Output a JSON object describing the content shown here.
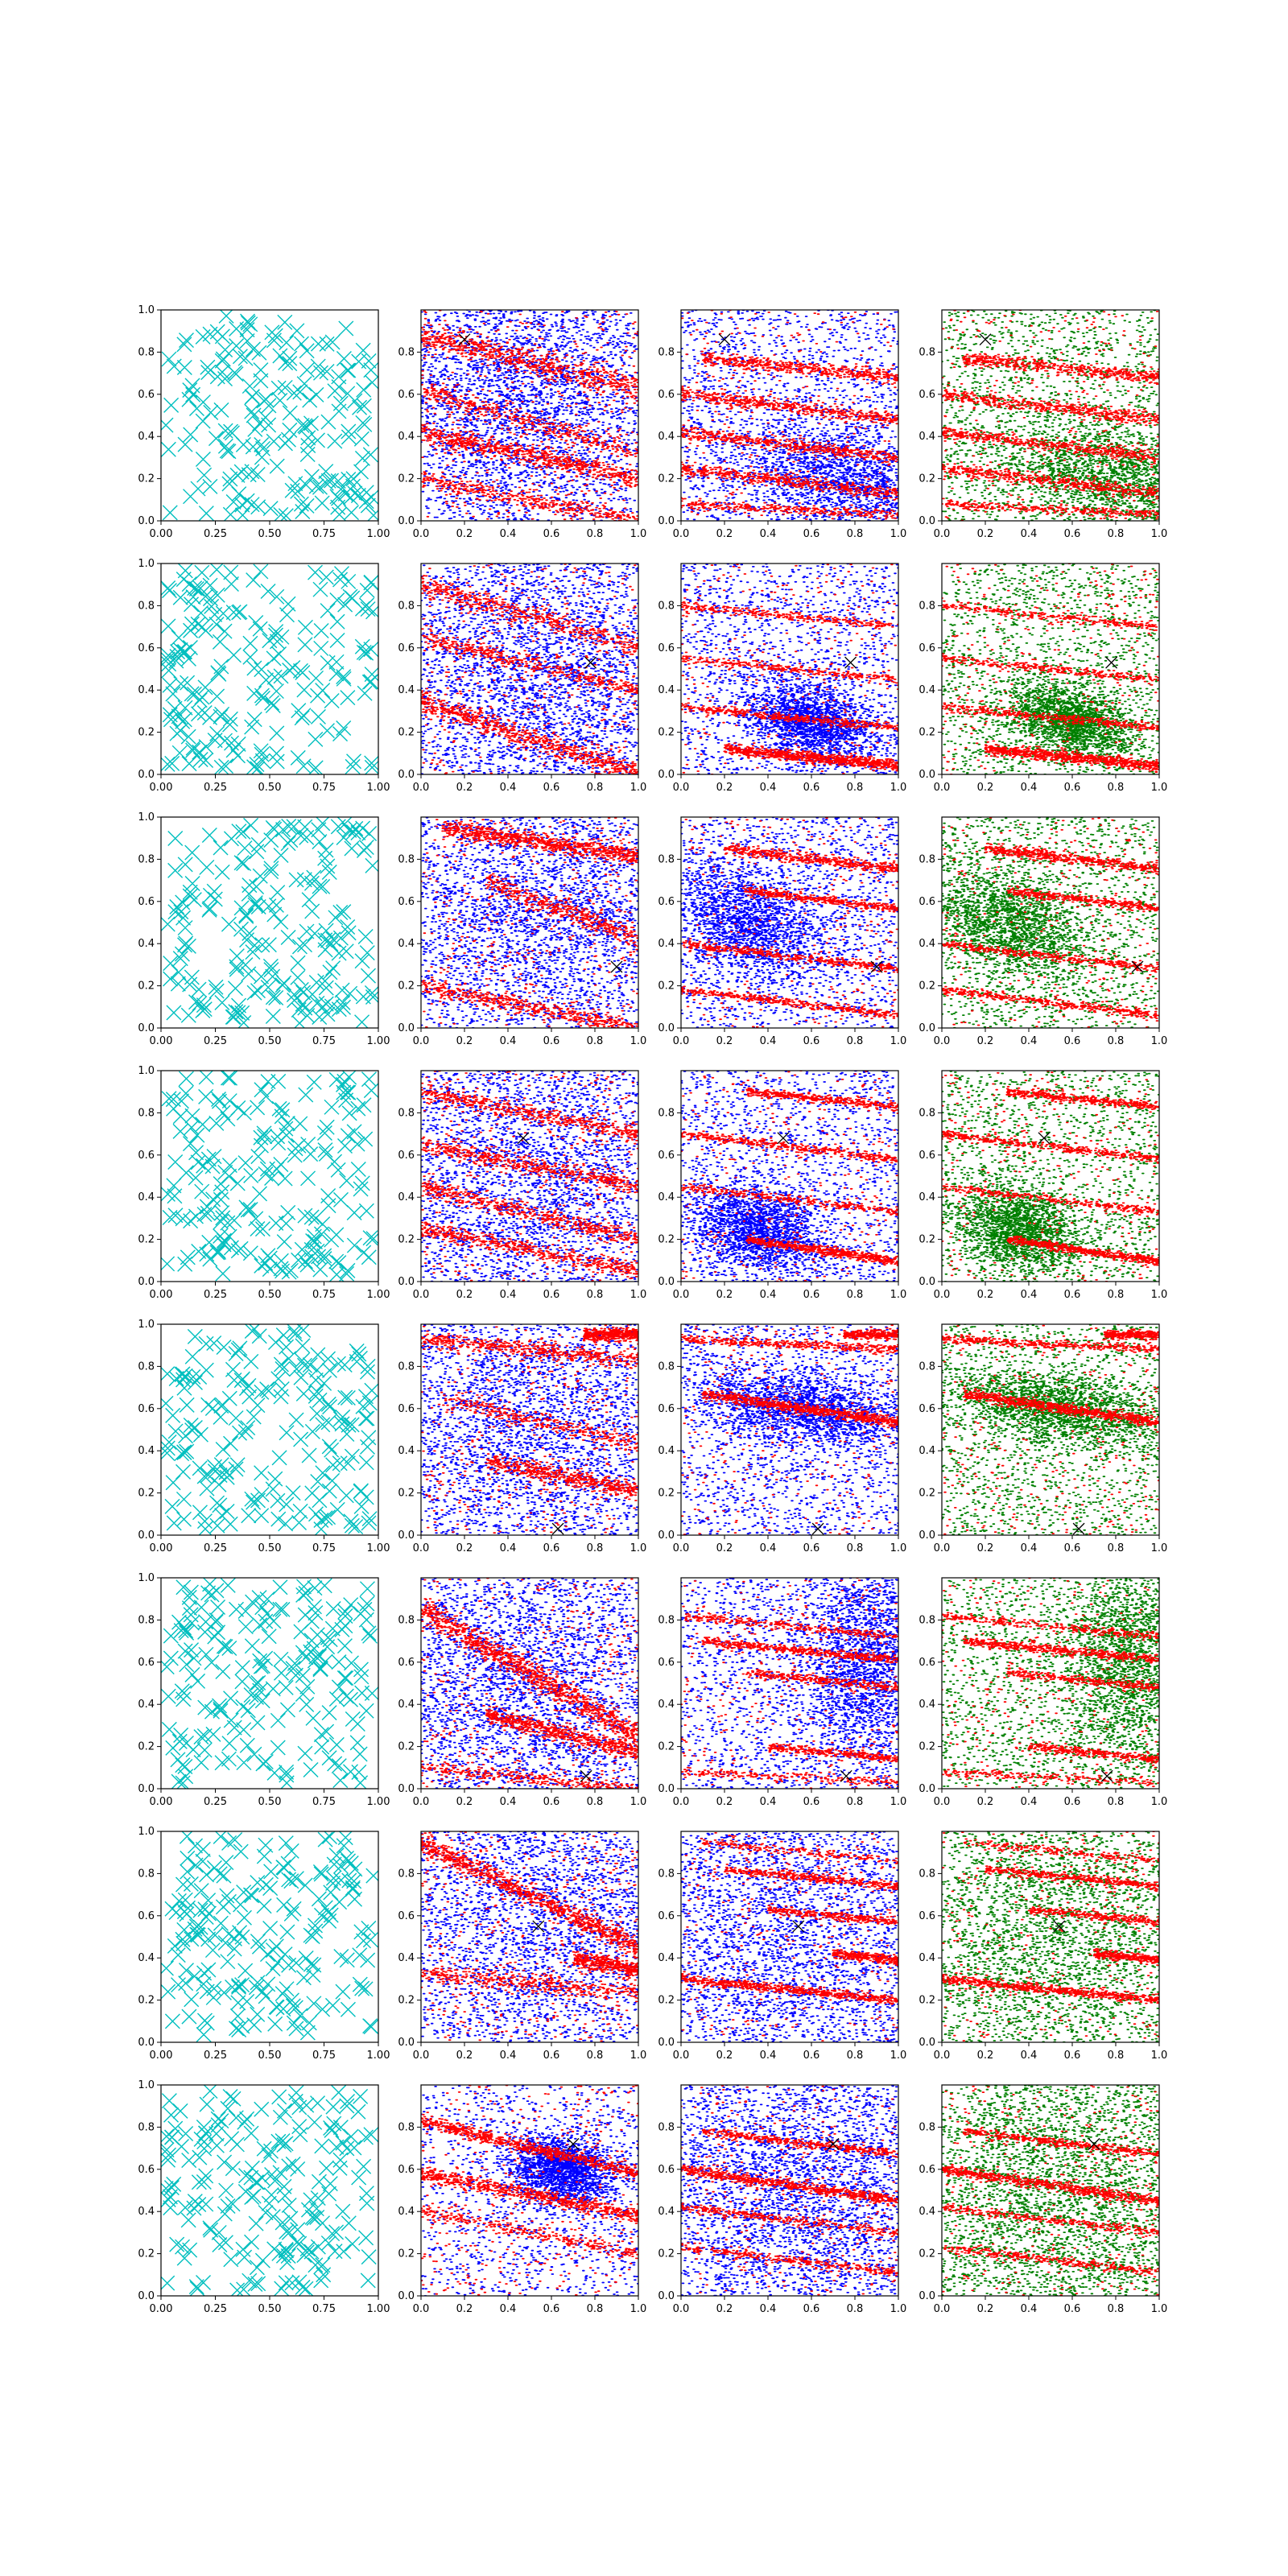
{
  "chart_data": {
    "type": "scatter",
    "layout": {
      "rows": 8,
      "cols": 4
    },
    "colors": {
      "uniform_marker": "#00bfbf",
      "red_points": "#ff0000",
      "blue_points": "#0000ff",
      "green_points": "#008000",
      "target_marker": "#000000"
    },
    "col0": {
      "marker": "x",
      "xlim": [
        0,
        1
      ],
      "ylim": [
        0,
        1
      ],
      "xticks": [
        "0.00",
        "0.25",
        "0.50",
        "0.75",
        "1.00"
      ],
      "yticks": [
        "0.0",
        "0.2",
        "0.4",
        "0.6",
        "0.8",
        "1.0"
      ],
      "n_points": 200
    },
    "cols123": {
      "xlim": [
        0,
        1
      ],
      "ylim": [
        0,
        1
      ],
      "xticks": [
        "0.0",
        "0.2",
        "0.4",
        "0.6",
        "0.8",
        "1.0"
      ],
      "yticks": [
        "0.0",
        "0.2",
        "0.4",
        "0.6",
        "0.8"
      ]
    },
    "rows": [
      {
        "target": [
          0.2,
          0.86
        ],
        "red_bands": [
          {
            "x0": 0.0,
            "y0": 0.88,
            "slope": -0.25,
            "w": 0.06,
            "n": 700
          },
          {
            "x0": 0.0,
            "y0": 0.42,
            "slope": -0.22,
            "w": 0.05,
            "n": 700
          },
          {
            "x0": 0.0,
            "y0": 0.62,
            "slope": -0.3,
            "w": 0.05,
            "n": 400
          },
          {
            "x0": 0.0,
            "y0": 0.2,
            "slope": -0.2,
            "w": 0.04,
            "n": 400
          }
        ],
        "blue_cluster": {
          "cx": 0.45,
          "cy": 0.55,
          "sx": 0.35,
          "sy": 0.3,
          "rot": -0.4,
          "n": 2500
        },
        "blue_cluster_c3": {
          "cx": 0.8,
          "cy": 0.2,
          "sx": 0.3,
          "sy": 0.12,
          "rot": -0.2,
          "n": 1800
        },
        "red_bands_c3": [
          {
            "x0": 0.1,
            "y0": 0.77,
            "slope": -0.1,
            "w": 0.03,
            "n": 500
          },
          {
            "x0": 0.0,
            "y0": 0.6,
            "slope": -0.12,
            "w": 0.03,
            "n": 500
          },
          {
            "x0": 0.0,
            "y0": 0.42,
            "slope": -0.12,
            "w": 0.03,
            "n": 500
          },
          {
            "x0": 0.0,
            "y0": 0.25,
            "slope": -0.12,
            "w": 0.03,
            "n": 500
          },
          {
            "x0": 0.0,
            "y0": 0.08,
            "slope": -0.05,
            "w": 0.02,
            "n": 300
          }
        ]
      },
      {
        "target": [
          0.78,
          0.53
        ],
        "red_bands": [
          {
            "x0": 0.0,
            "y0": 0.35,
            "slope": -0.35,
            "w": 0.05,
            "n": 700
          },
          {
            "x0": 0.0,
            "y0": 0.9,
            "slope": -0.3,
            "w": 0.05,
            "n": 500
          },
          {
            "x0": 0.0,
            "y0": 0.65,
            "slope": -0.25,
            "w": 0.04,
            "n": 400
          }
        ],
        "blue_cluster": {
          "cx": 0.55,
          "cy": 0.45,
          "sx": 0.35,
          "sy": 0.35,
          "rot": -0.3,
          "n": 2500
        },
        "blue_cluster_c3": {
          "cx": 0.6,
          "cy": 0.25,
          "sx": 0.15,
          "sy": 0.08,
          "rot": -0.3,
          "n": 1800
        },
        "red_bands_c3": [
          {
            "x0": 0.2,
            "y0": 0.12,
            "slope": -0.1,
            "w": 0.025,
            "n": 800
          },
          {
            "x0": 0.0,
            "y0": 0.32,
            "slope": -0.1,
            "w": 0.02,
            "n": 400
          },
          {
            "x0": 0.0,
            "y0": 0.55,
            "slope": -0.1,
            "w": 0.02,
            "n": 300
          },
          {
            "x0": 0.0,
            "y0": 0.8,
            "slope": -0.1,
            "w": 0.02,
            "n": 300
          }
        ]
      },
      {
        "target": [
          0.9,
          0.29
        ],
        "red_bands": [
          {
            "x0": 0.1,
            "y0": 0.95,
            "slope": -0.15,
            "w": 0.04,
            "n": 800
          },
          {
            "x0": 0.0,
            "y0": 0.2,
            "slope": -0.2,
            "w": 0.04,
            "n": 500
          },
          {
            "x0": 0.3,
            "y0": 0.7,
            "slope": -0.4,
            "w": 0.05,
            "n": 400
          }
        ],
        "blue_cluster": {
          "cx": 0.55,
          "cy": 0.55,
          "sx": 0.4,
          "sy": 0.35,
          "rot": -0.3,
          "n": 2500
        },
        "blue_cluster_c3": {
          "cx": 0.3,
          "cy": 0.5,
          "sx": 0.2,
          "sy": 0.12,
          "rot": -0.4,
          "n": 1800
        },
        "red_bands_c3": [
          {
            "x0": 0.2,
            "y0": 0.85,
            "slope": -0.12,
            "w": 0.025,
            "n": 500
          },
          {
            "x0": 0.3,
            "y0": 0.65,
            "slope": -0.12,
            "w": 0.02,
            "n": 400
          },
          {
            "x0": 0.0,
            "y0": 0.4,
            "slope": -0.12,
            "w": 0.02,
            "n": 400
          },
          {
            "x0": 0.0,
            "y0": 0.18,
            "slope": -0.12,
            "w": 0.02,
            "n": 400
          }
        ]
      },
      {
        "target": [
          0.47,
          0.68
        ],
        "red_bands": [
          {
            "x0": 0.0,
            "y0": 0.9,
            "slope": -0.2,
            "w": 0.04,
            "n": 500
          },
          {
            "x0": 0.0,
            "y0": 0.65,
            "slope": -0.2,
            "w": 0.04,
            "n": 500
          },
          {
            "x0": 0.0,
            "y0": 0.45,
            "slope": -0.25,
            "w": 0.04,
            "n": 500
          },
          {
            "x0": 0.0,
            "y0": 0.25,
            "slope": -0.2,
            "w": 0.04,
            "n": 500
          }
        ],
        "blue_cluster": {
          "cx": 0.5,
          "cy": 0.5,
          "sx": 0.4,
          "sy": 0.4,
          "rot": -0.3,
          "n": 2500
        },
        "blue_cluster_c3": {
          "cx": 0.35,
          "cy": 0.25,
          "sx": 0.15,
          "sy": 0.1,
          "rot": -0.3,
          "n": 1800
        },
        "red_bands_c3": [
          {
            "x0": 0.3,
            "y0": 0.2,
            "slope": -0.15,
            "w": 0.02,
            "n": 600
          },
          {
            "x0": 0.0,
            "y0": 0.7,
            "slope": -0.12,
            "w": 0.02,
            "n": 400
          },
          {
            "x0": 0.3,
            "y0": 0.9,
            "slope": -0.1,
            "w": 0.02,
            "n": 400
          },
          {
            "x0": 0.0,
            "y0": 0.45,
            "slope": -0.12,
            "w": 0.02,
            "n": 300
          }
        ]
      },
      {
        "target": [
          0.63,
          0.03
        ],
        "red_bands": [
          {
            "x0": 0.0,
            "y0": 0.93,
            "slope": -0.1,
            "w": 0.04,
            "n": 500
          },
          {
            "x0": 0.75,
            "y0": 0.95,
            "slope": 0.0,
            "w": 0.03,
            "n": 400
          },
          {
            "x0": 0.3,
            "y0": 0.35,
            "slope": -0.2,
            "w": 0.04,
            "n": 500
          },
          {
            "x0": 0.1,
            "y0": 0.65,
            "slope": -0.25,
            "w": 0.04,
            "n": 300
          }
        ],
        "blue_cluster": {
          "cx": 0.5,
          "cy": 0.55,
          "sx": 0.4,
          "sy": 0.35,
          "rot": -0.3,
          "n": 2300
        },
        "blue_cluster_c3": {
          "cx": 0.55,
          "cy": 0.6,
          "sx": 0.25,
          "sy": 0.08,
          "rot": -0.15,
          "n": 1800
        },
        "red_bands_c3": [
          {
            "x0": 0.1,
            "y0": 0.67,
            "slope": -0.15,
            "w": 0.025,
            "n": 800
          },
          {
            "x0": 0.0,
            "y0": 0.93,
            "slope": -0.05,
            "w": 0.02,
            "n": 400
          },
          {
            "x0": 0.75,
            "y0": 0.95,
            "slope": 0.0,
            "w": 0.02,
            "n": 300
          }
        ]
      },
      {
        "target": [
          0.76,
          0.06
        ],
        "red_bands": [
          {
            "x0": 0.0,
            "y0": 0.85,
            "slope": -0.6,
            "w": 0.06,
            "n": 1000
          },
          {
            "x0": 0.3,
            "y0": 0.35,
            "slope": -0.25,
            "w": 0.04,
            "n": 600
          },
          {
            "x0": 0.0,
            "y0": 0.1,
            "slope": -0.1,
            "w": 0.03,
            "n": 300
          }
        ],
        "blue_cluster": {
          "cx": 0.45,
          "cy": 0.5,
          "sx": 0.35,
          "sy": 0.35,
          "rot": -0.4,
          "n": 2300
        },
        "blue_cluster_c3": {
          "cx": 0.85,
          "cy": 0.6,
          "sx": 0.15,
          "sy": 0.25,
          "rot": 0.0,
          "n": 1800
        },
        "red_bands_c3": [
          {
            "x0": 0.1,
            "y0": 0.7,
            "slope": -0.1,
            "w": 0.02,
            "n": 500
          },
          {
            "x0": 0.0,
            "y0": 0.82,
            "slope": -0.1,
            "w": 0.02,
            "n": 300
          },
          {
            "x0": 0.3,
            "y0": 0.55,
            "slope": -0.1,
            "w": 0.02,
            "n": 300
          },
          {
            "x0": 0.4,
            "y0": 0.2,
            "slope": -0.1,
            "w": 0.02,
            "n": 300
          },
          {
            "x0": 0.0,
            "y0": 0.08,
            "slope": -0.05,
            "w": 0.02,
            "n": 200
          }
        ]
      },
      {
        "target": [
          0.54,
          0.55
        ],
        "red_bands": [
          {
            "x0": 0.0,
            "y0": 0.95,
            "slope": -0.5,
            "w": 0.05,
            "n": 900
          },
          {
            "x0": 0.0,
            "y0": 0.33,
            "slope": -0.1,
            "w": 0.04,
            "n": 400
          },
          {
            "x0": 0.7,
            "y0": 0.4,
            "slope": -0.2,
            "w": 0.04,
            "n": 400
          }
        ],
        "blue_cluster": {
          "cx": 0.55,
          "cy": 0.55,
          "sx": 0.4,
          "sy": 0.4,
          "rot": -0.3,
          "n": 2300
        },
        "blue_cluster_c3": {
          "cx": 0.5,
          "cy": 0.5,
          "sx": 0.4,
          "sy": 0.4,
          "rot": 0.0,
          "n": 2000
        },
        "red_bands_c3": [
          {
            "x0": 0.0,
            "y0": 0.3,
            "slope": -0.1,
            "w": 0.02,
            "n": 600
          },
          {
            "x0": 0.2,
            "y0": 0.82,
            "slope": -0.1,
            "w": 0.02,
            "n": 400
          },
          {
            "x0": 0.4,
            "y0": 0.63,
            "slope": -0.1,
            "w": 0.02,
            "n": 300
          },
          {
            "x0": 0.7,
            "y0": 0.42,
            "slope": -0.1,
            "w": 0.02,
            "n": 300
          },
          {
            "x0": 0.1,
            "y0": 0.95,
            "slope": -0.1,
            "w": 0.02,
            "n": 200
          }
        ]
      },
      {
        "target": [
          0.7,
          0.72
        ],
        "red_bands": [
          {
            "x0": 0.0,
            "y0": 0.83,
            "slope": -0.25,
            "w": 0.03,
            "n": 700
          },
          {
            "x0": 0.0,
            "y0": 0.58,
            "slope": -0.2,
            "w": 0.035,
            "n": 700
          },
          {
            "x0": 0.0,
            "y0": 0.4,
            "slope": -0.2,
            "w": 0.03,
            "n": 300
          }
        ],
        "blue_cluster": {
          "cx": 0.65,
          "cy": 0.6,
          "sx": 0.12,
          "sy": 0.08,
          "rot": -0.2,
          "n": 1800
        },
        "blue_cluster_c3": {
          "cx": 0.55,
          "cy": 0.5,
          "sx": 0.35,
          "sy": 0.35,
          "rot": -0.2,
          "n": 2200
        },
        "red_bands_c3": [
          {
            "x0": 0.1,
            "y0": 0.78,
            "slope": -0.12,
            "w": 0.02,
            "n": 400
          },
          {
            "x0": 0.0,
            "y0": 0.6,
            "slope": -0.15,
            "w": 0.025,
            "n": 700
          },
          {
            "x0": 0.0,
            "y0": 0.42,
            "slope": -0.12,
            "w": 0.02,
            "n": 300
          },
          {
            "x0": 0.0,
            "y0": 0.23,
            "slope": -0.12,
            "w": 0.02,
            "n": 300
          }
        ]
      }
    ]
  }
}
